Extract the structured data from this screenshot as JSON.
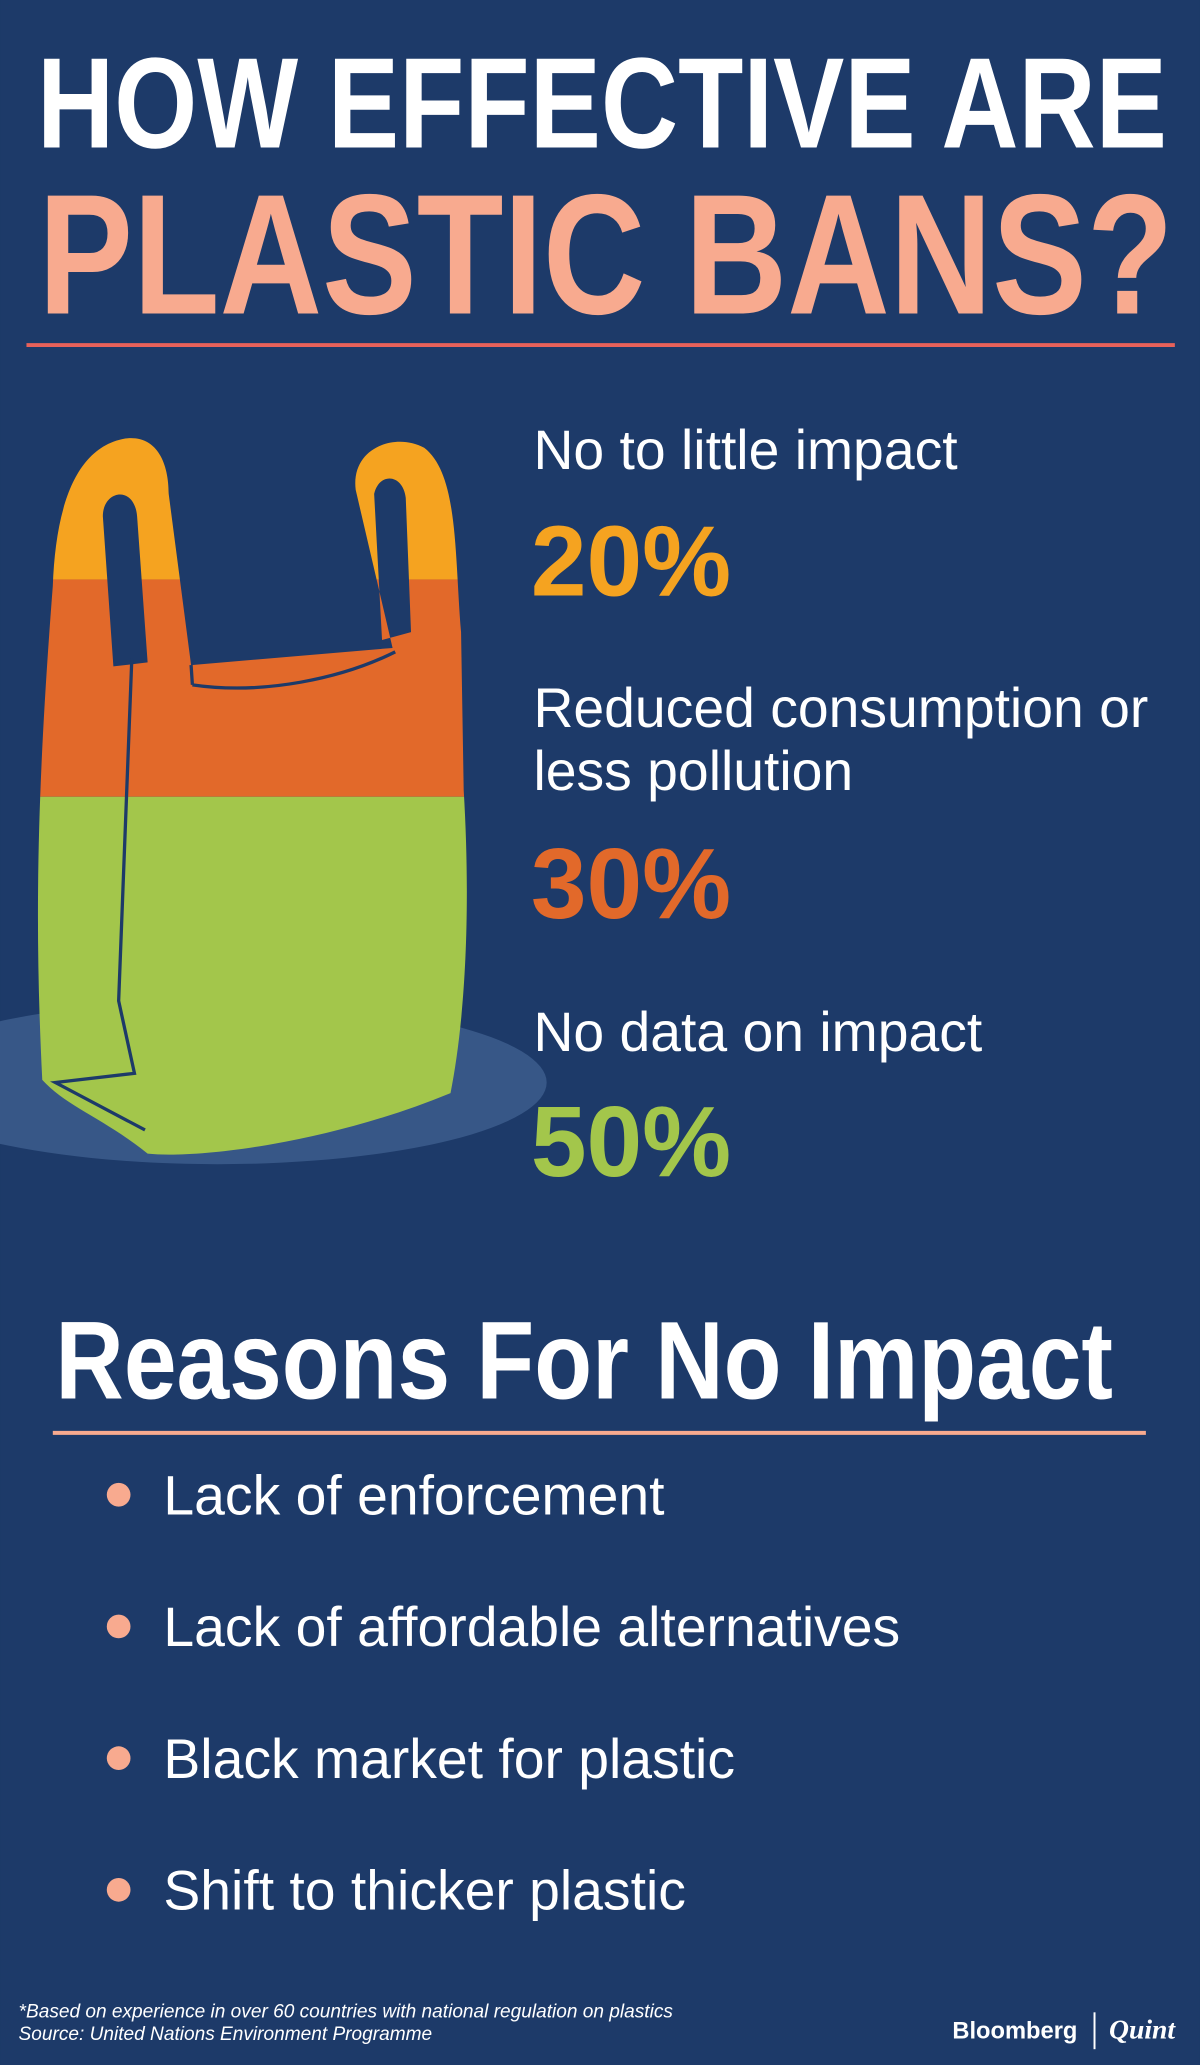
{
  "title_line1": "HOW EFFECTIVE ARE",
  "title_line2": "PLASTIC BANS?",
  "stats": {
    "categories": [
      "No to little impact",
      "Reduced consumption or less pollution",
      "No data on impact"
    ],
    "values": [
      20,
      30,
      50
    ],
    "value_labels": [
      "20%",
      "30%",
      "50%"
    ],
    "colors": [
      "#f5a320",
      "#e2692a",
      "#a3c64b"
    ]
  },
  "reasons_title": "Reasons For No Impact",
  "reasons": [
    "Lack of enforcement",
    "Lack of affordable alternatives",
    "Black market for plastic",
    "Shift to thicker plastic"
  ],
  "footnote": "*Based on experience in over 60 countries with national regulation on plastics",
  "source": "Source: United Nations Environment Programme",
  "brand": [
    "Bloomberg",
    "Quint"
  ]
}
